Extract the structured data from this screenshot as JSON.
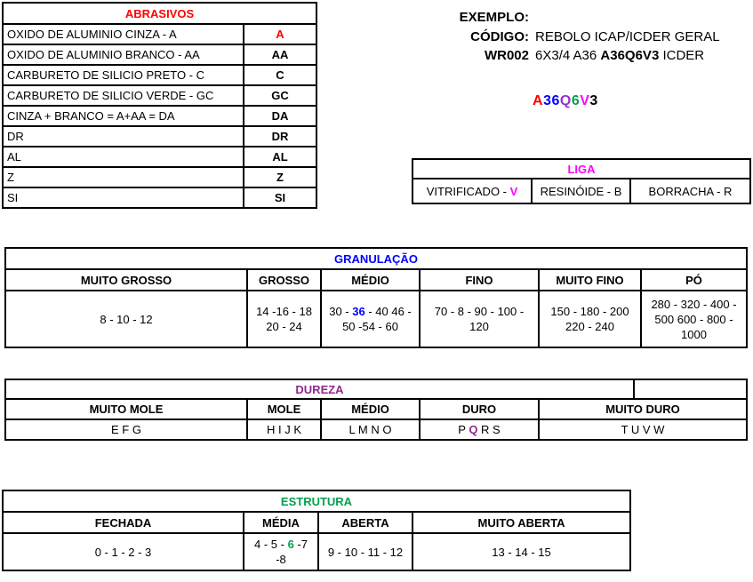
{
  "colors": {
    "red": "#FF0000",
    "blue": "#0000FF",
    "magenta": "#FF00FF",
    "purple": "#93278F",
    "violet": "#9933CC",
    "green": "#00A14B",
    "black": "#000000"
  },
  "abrasivos": {
    "title": [
      {
        "t": "ABRASIVOS",
        "c": "#FF0000"
      }
    ],
    "rows": [
      {
        "name": "OXIDO DE ALUMINIO CINZA - A",
        "code": [
          {
            "t": "A",
            "c": "#FF0000"
          }
        ]
      },
      {
        "name": "OXIDO DE ALUMINIO BRANCO - AA",
        "code": [
          {
            "t": "AA"
          }
        ]
      },
      {
        "name": "CARBURETO DE SILICIO PRETO - C",
        "code": [
          {
            "t": "C"
          }
        ]
      },
      {
        "name": "CARBURETO DE SILICIO VERDE - GC",
        "code": [
          {
            "t": "GC"
          }
        ]
      },
      {
        "name": "CINZA + BRANCO = A+AA = DA",
        "code": [
          {
            "t": "DA"
          }
        ]
      },
      {
        "name": "DR",
        "code": [
          {
            "t": "DR"
          }
        ]
      },
      {
        "name": "AL",
        "code": [
          {
            "t": "AL"
          }
        ]
      },
      {
        "name": "Z",
        "code": [
          {
            "t": "Z"
          }
        ]
      },
      {
        "name": "SI",
        "code": [
          {
            "t": "SI"
          }
        ]
      }
    ]
  },
  "exemplo": {
    "title": "EXEMPLO:",
    "codigo_label": "CÓDIGO:",
    "codigo_value": [
      {
        "t": "REBOLO ICAP/ICDER GERAL"
      }
    ],
    "wr_label": "WR002",
    "wr_value": [
      {
        "t": "6X3/4 A36 "
      },
      {
        "t": "A36Q6V3",
        "b": true
      },
      {
        "t": " ICDER"
      }
    ],
    "code": [
      {
        "t": "A",
        "c": "#FF0000"
      },
      {
        "t": "36",
        "c": "#0000FF"
      },
      {
        "t": "Q",
        "c": "#9933CC"
      },
      {
        "t": "6",
        "c": "#00A14B"
      },
      {
        "t": "V",
        "c": "#FF00FF"
      },
      {
        "t": "3",
        "c": "#000000"
      }
    ]
  },
  "liga": {
    "title": [
      {
        "t": "LIGA",
        "c": "#FF00FF"
      }
    ],
    "cells": [
      [
        {
          "t": "VITRIFICADO - "
        },
        {
          "t": "V",
          "c": "#FF00FF",
          "b": true
        }
      ],
      [
        {
          "t": "RESINÓIDE - B"
        }
      ],
      [
        {
          "t": "BORRACHA - R"
        }
      ]
    ]
  },
  "granulacao": {
    "title": [
      {
        "t": "GRANULAÇÃO",
        "c": "#0000FF"
      }
    ],
    "headers": [
      "MUITO GROSSO",
      "GROSSO",
      "MÉDIO",
      "FINO",
      "MUITO FINO",
      "PÓ"
    ],
    "values": [
      [
        {
          "t": "8 - 10 - 12"
        }
      ],
      [
        {
          "t": "14 -16 - 18 20 - 24"
        }
      ],
      [
        {
          "t": "30 - "
        },
        {
          "t": "36",
          "c": "#0000FF",
          "b": true
        },
        {
          "t": " - 40 46 - 50 -54 - 60"
        }
      ],
      [
        {
          "t": "70 - 8 - 90 - 100 - 120"
        }
      ],
      [
        {
          "t": "150 - 180 - 200 220 - 240"
        }
      ],
      [
        {
          "t": "280 - 320 - 400 - 500  600 - 800 - 1000"
        }
      ]
    ]
  },
  "dureza": {
    "title": [
      {
        "t": "DUREZA",
        "c": "#93278F"
      }
    ],
    "headers": [
      "MUITO MOLE",
      "MOLE",
      "MÉDIO",
      "DURO",
      "MUITO DURO"
    ],
    "values": [
      [
        {
          "t": "E F G"
        }
      ],
      [
        {
          "t": "H I J K"
        }
      ],
      [
        {
          "t": "L M N O"
        }
      ],
      [
        {
          "t": "P "
        },
        {
          "t": "Q",
          "c": "#93278F",
          "b": true
        },
        {
          "t": " R S"
        }
      ],
      [
        {
          "t": "T U V W"
        }
      ]
    ]
  },
  "estrutura": {
    "title": [
      {
        "t": "ESTRUTURA",
        "c": "#00A14B"
      }
    ],
    "headers": [
      "FECHADA",
      "MÉDIA",
      "ABERTA",
      "MUITO ABERTA"
    ],
    "values": [
      [
        {
          "t": "0 - 1 - 2 - 3"
        }
      ],
      [
        {
          "t": "4 - 5 - "
        },
        {
          "t": "6",
          "c": "#00A14B",
          "b": true
        },
        {
          "t": " -7 -8"
        }
      ],
      [
        {
          "t": "9 - 10 - 11 - 12"
        }
      ],
      [
        {
          "t": "13 - 14 - 15"
        }
      ]
    ]
  }
}
